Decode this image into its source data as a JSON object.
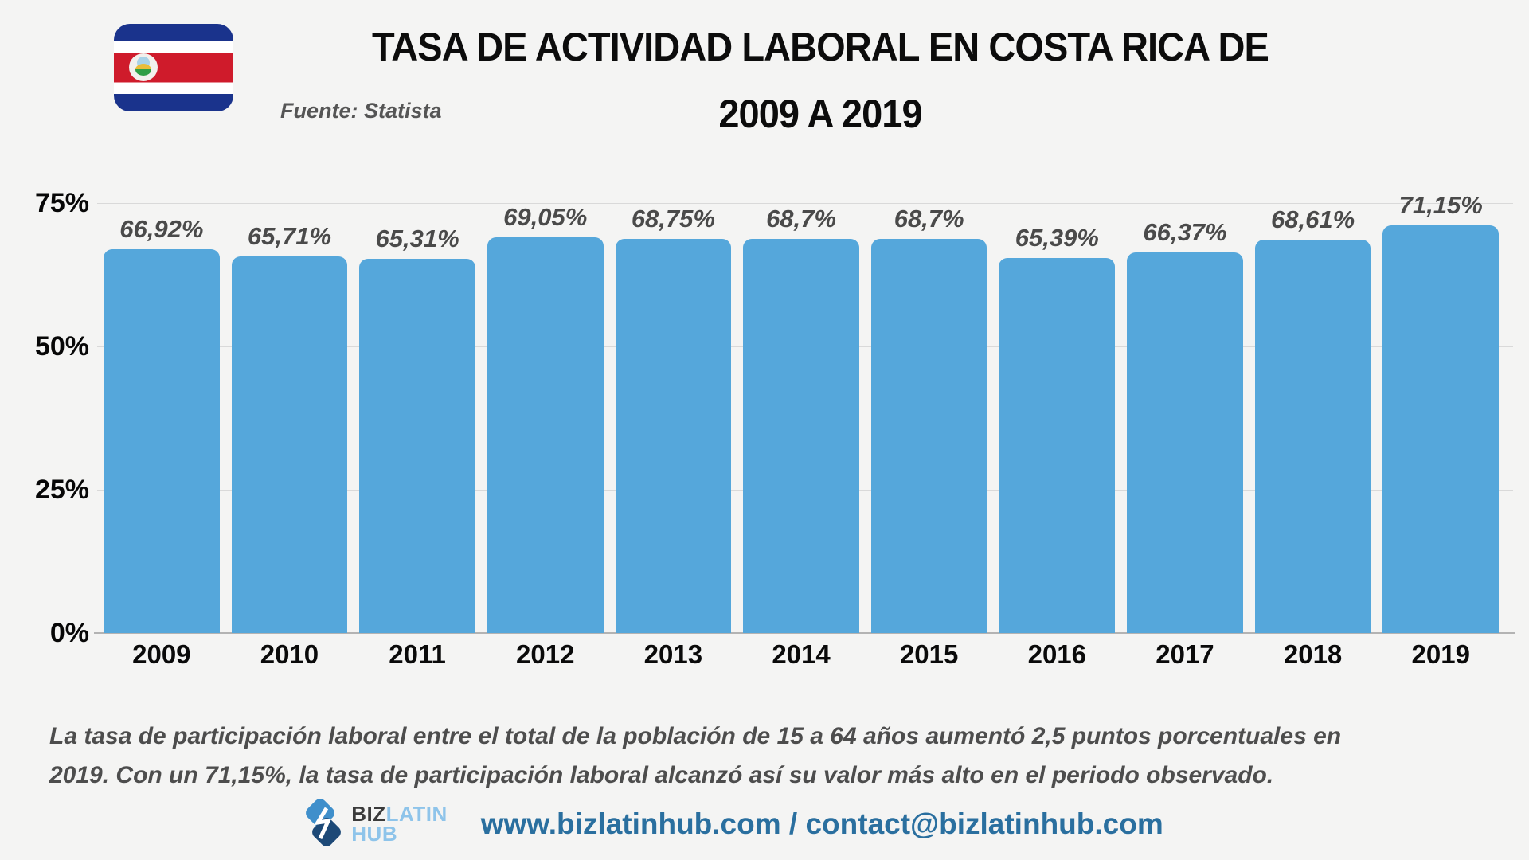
{
  "header": {
    "title_line1": "TASA DE ACTIVIDAD LABORAL EN COSTA RICA DE",
    "title_line2": "2009 A 2019",
    "source": "Fuente: Statista"
  },
  "chart_data": {
    "type": "bar",
    "title": "Tasa de actividad laboral en Costa Rica de 2009 a 2019",
    "xlabel": "",
    "ylabel": "",
    "ylim": [
      0,
      75
    ],
    "grid": true,
    "legend_position": "none",
    "bar_color": "#55a7db",
    "categories": [
      "2009",
      "2010",
      "2011",
      "2012",
      "2013",
      "2014",
      "2015",
      "2016",
      "2017",
      "2018",
      "2019"
    ],
    "values": [
      66.92,
      65.71,
      65.31,
      69.05,
      68.75,
      68.7,
      68.7,
      65.39,
      66.37,
      68.61,
      71.15
    ],
    "value_labels": [
      "66,92%",
      "65,71%",
      "65,31%",
      "69,05%",
      "68,75%",
      "68,7%",
      "68,7%",
      "65,39%",
      "66,37%",
      "68,61%",
      "71,15%"
    ],
    "yticks": [
      {
        "value": 0,
        "label": "0%"
      },
      {
        "value": 25,
        "label": "25%"
      },
      {
        "value": 50,
        "label": "50%"
      },
      {
        "value": 75,
        "label": "75%"
      }
    ]
  },
  "caption": {
    "text": "La tasa de participación laboral entre el total de la población de 15 a 64 años aumentó 2,5 puntos porcentuales en\n2019. Con un 71,15%, la tasa de participación laboral alcanzó así su valor más alto en el periodo observado."
  },
  "footer": {
    "logo_part1": "BIZ",
    "logo_part2": "LATIN",
    "logo_part3": "HUB",
    "contact_line": "www.bizlatinhub.com / contact@bizlatinhub.com"
  },
  "colors": {
    "background": "#f4f4f3",
    "bar": "#55a7db",
    "gridline": "#d9d9d9",
    "axis_line": "#b3b3b3",
    "value_label_gray": "#4a4a4a",
    "caption_gray": "#4d4d4d",
    "link_blue": "#2a6f9f",
    "flag_blue": "#1a338c",
    "flag_red": "#cf1b2b"
  }
}
